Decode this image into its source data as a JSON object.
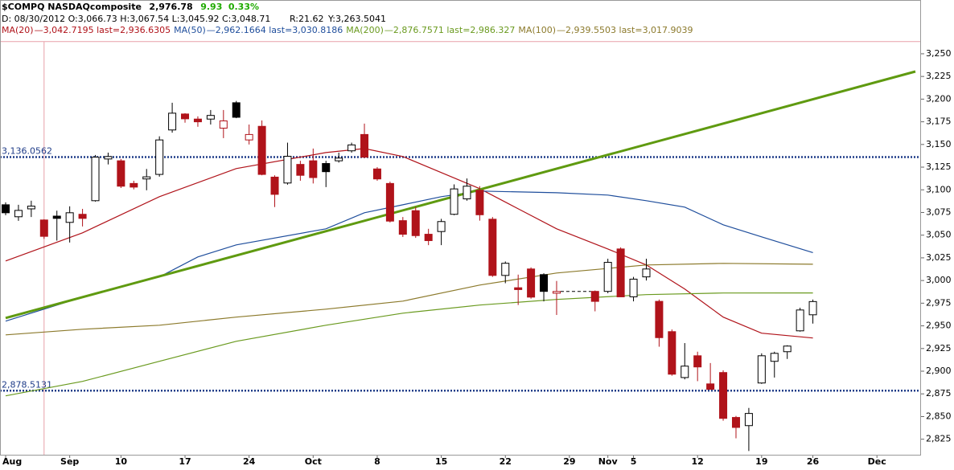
{
  "chart_data": {
    "type": "candlestick",
    "header": {
      "symbol": "$COMPQ NASDAQcomposite",
      "last": "2,976.78",
      "change": "9.93",
      "change_pct": "0.33%",
      "info": "D: 08/30/2012 O:3,066.73 H:3,067.54 L:3,045.92 C:3,048.71",
      "readout_r": "R:21.62",
      "readout_y": "Y:3,263.5041"
    },
    "up_color": "#000000",
    "down_color": "#b0131a",
    "change_color": "#1faa00",
    "xlim": [
      -0.44,
      71.44
    ],
    "xticks": [
      {
        "value": 0,
        "label": "Aug"
      },
      {
        "value": 5,
        "label": "Sep"
      },
      {
        "value": 9,
        "label": "10"
      },
      {
        "value": 14,
        "label": "17"
      },
      {
        "value": 19,
        "label": "24"
      },
      {
        "value": 24,
        "label": "Oct"
      },
      {
        "value": 29,
        "label": "8"
      },
      {
        "value": 34,
        "label": "15"
      },
      {
        "value": 39,
        "label": "22"
      },
      {
        "value": 44,
        "label": "29"
      },
      {
        "value": 47,
        "label": "Nov"
      },
      {
        "value": 49,
        "label": "5"
      },
      {
        "value": 54,
        "label": "12"
      },
      {
        "value": 59,
        "label": "19"
      },
      {
        "value": 63,
        "label": "26"
      },
      {
        "value": 68,
        "label": "Dec"
      }
    ],
    "ylim": [
      2807,
      3309.3
    ],
    "yticks": [
      {
        "value": 2825,
        "label": "2,825"
      },
      {
        "value": 2850,
        "label": "2,850"
      },
      {
        "value": 2875,
        "label": "2,875"
      },
      {
        "value": 2900,
        "label": "2,900"
      },
      {
        "value": 2925,
        "label": "2,925"
      },
      {
        "value": 2950,
        "label": "2,950"
      },
      {
        "value": 2975,
        "label": "2,975"
      },
      {
        "value": 3000,
        "label": "3,000"
      },
      {
        "value": 3025,
        "label": "3,025"
      },
      {
        "value": 3050,
        "label": "3,050"
      },
      {
        "value": 3075,
        "label": "3,075"
      },
      {
        "value": 3100,
        "label": "3,100"
      },
      {
        "value": 3125,
        "label": "3,125"
      },
      {
        "value": 3150,
        "label": "3,150"
      },
      {
        "value": 3175,
        "label": "3,175"
      },
      {
        "value": 3200,
        "label": "3,200"
      },
      {
        "value": 3225,
        "label": "3,225"
      },
      {
        "value": 3250,
        "label": "3,250"
      }
    ],
    "ohlc": {
      "x": [
        0,
        1,
        2,
        3,
        4,
        5,
        6,
        7,
        8,
        9,
        10,
        11,
        12,
        13,
        14,
        15,
        16,
        17,
        18,
        19,
        20,
        21,
        22,
        23,
        24,
        25,
        26,
        27,
        28,
        29,
        30,
        31,
        32,
        33,
        34,
        35,
        36,
        37,
        38,
        39,
        40,
        41,
        42,
        43,
        46,
        47,
        48,
        49,
        50,
        51,
        52,
        53,
        54,
        55,
        56,
        57,
        58,
        59,
        60,
        61,
        62,
        63
      ],
      "open": [
        3083.5,
        3070.3,
        3079,
        3066.73,
        3071,
        3064.1,
        3073,
        3088,
        3134,
        3132,
        3107,
        3112,
        3117,
        3166,
        3183.6,
        3178,
        3178,
        3168,
        3196,
        3155,
        3170,
        3114,
        3107.5,
        3128,
        3132,
        3129,
        3132,
        3143,
        3161,
        3123,
        3107,
        3066,
        3077,
        3051,
        3054,
        3073,
        3090,
        3099.5,
        3067.6,
        3005.6,
        2992,
        3012.7,
        3006.5,
        2986,
        2988,
        2988,
        3034.8,
        2982,
        3004,
        2977,
        2943.6,
        2893,
        2917,
        2886,
        2898.5,
        2849,
        2840,
        2887,
        2910.9,
        2921.5,
        2944.5,
        2962.2
      ],
      "high": [
        3086.2,
        3083.5,
        3088,
        3067.54,
        3077,
        3081.8,
        3079,
        3138.4,
        3141,
        3134,
        3110,
        3123,
        3159,
        3196,
        3184.5,
        3181,
        3188,
        3188,
        3198,
        3172,
        3176.5,
        3116,
        3152,
        3132,
        3145.5,
        3132,
        3141,
        3152,
        3173,
        3125,
        3109,
        3070,
        3081,
        3057,
        3068,
        3106,
        3112.5,
        3104,
        3070,
        3021,
        3006.5,
        3014.5,
        3008,
        2999.5,
        2989,
        3024,
        3036.6,
        3004,
        3024,
        2979,
        2946,
        2931,
        2921.5,
        2909,
        2901,
        2850.7,
        2859.5,
        2919.7,
        2921.5,
        2928.6,
        2970,
        2979
      ],
      "low": [
        3072,
        3065.8,
        3070,
        3045.92,
        3044,
        3041.9,
        3059.6,
        3087,
        3128,
        3102,
        3100.5,
        3099.5,
        3114.5,
        3163,
        3174,
        3169.5,
        3172,
        3157,
        3179,
        3150,
        3116,
        3081,
        3105.7,
        3110,
        3107,
        3103,
        3130,
        3141,
        3135,
        3110,
        3064,
        3048,
        3047,
        3039,
        3039,
        3072,
        3088,
        3066,
        3004,
        2997,
        2973,
        2980,
        2977,
        2962,
        2966,
        2986,
        2982,
        2977,
        3000,
        2927,
        2895,
        2891,
        2889,
        2880,
        2845.4,
        2826,
        2812,
        2886,
        2893,
        2913.5,
        2943.6,
        2952.5
      ],
      "close": [
        3074.7,
        3077.3,
        3082,
        3048.71,
        3068.5,
        3074.7,
        3068.5,
        3136,
        3136.7,
        3104,
        3103,
        3114.3,
        3155,
        3184.5,
        3178.3,
        3175,
        3182,
        3176,
        3180,
        3161,
        3117,
        3095,
        3137,
        3116,
        3113.5,
        3120,
        3135,
        3149.5,
        3136,
        3112,
        3065.5,
        3051,
        3049.5,
        3044,
        3065,
        3101,
        3104,
        3072.5,
        3005.6,
        3019,
        2990,
        2981.7,
        2988,
        2987.9,
        2977,
        3020,
        2982,
        3001.5,
        3012.7,
        2937,
        2896.7,
        2905.6,
        2904.7,
        2880,
        2848,
        2838,
        2853.4,
        2917,
        2919.7,
        2927.7,
        2967.5,
        2976.78
      ]
    },
    "series": [
      {
        "name": "MA(20)",
        "legend_text": "—3,042.7195 last=2,936.6305",
        "color": "#b0131a",
        "x": [
          0,
          6,
          12,
          18,
          25,
          28,
          31,
          34,
          37,
          40,
          43,
          47,
          50,
          53,
          56,
          59,
          63
        ],
        "values": [
          3021.6,
          3052.6,
          3092.4,
          3123.4,
          3141.1,
          3145.5,
          3136.7,
          3119.0,
          3101.3,
          3079.1,
          3057.0,
          3034.8,
          3017.1,
          2990.6,
          2959.6,
          2941.9,
          2936.6
        ]
      },
      {
        "name": "MA(50)",
        "legend_text": "—2,962.1664 last=3,030.8186",
        "color": "#1f4e9c",
        "x": [
          0,
          6,
          12,
          15,
          18,
          25,
          28,
          31,
          34,
          37,
          43,
          47,
          50,
          53,
          56,
          59,
          63
        ],
        "values": [
          2955.2,
          2981.7,
          3003.9,
          3026.0,
          3039.3,
          3057.0,
          3074.7,
          3083.5,
          3092.4,
          3098.6,
          3096.8,
          3094.2,
          3088.0,
          3080.9,
          3061.4,
          3048.1,
          3030.8
        ]
      },
      {
        "name": "MA(200)",
        "legend_text": "—2,876.7571 last=2,986.327",
        "color": "#6a9a1f",
        "x": [
          0,
          6,
          12,
          18,
          25,
          31,
          37,
          43,
          50,
          56,
          63
        ],
        "values": [
          2872.8,
          2888.8,
          2910.9,
          2933.0,
          2950.7,
          2964.0,
          2972.9,
          2979.1,
          2984.4,
          2986.2,
          2986.3
        ]
      },
      {
        "name": "MA(100)",
        "legend_text": "—2,939.5503 last=3,017.9039",
        "color": "#8c7a2c",
        "x": [
          0,
          6,
          12,
          18,
          25,
          31,
          37,
          43,
          50,
          56,
          63
        ],
        "values": [
          2940.1,
          2946.3,
          2950.7,
          2959.6,
          2968.4,
          2977.3,
          2995.0,
          3008.3,
          3017.1,
          3018.9,
          3017.9
        ]
      }
    ],
    "trendlines": [
      {
        "color": "#5f9a10",
        "x": [
          0,
          71
        ],
        "values": [
          2958.7,
          3230.5
        ]
      }
    ],
    "hlines": [
      {
        "value": 3136.0562,
        "label": "3,136.0562",
        "color": "#1f3c88"
      },
      {
        "value": 2878.5131,
        "label": "2,878.5131",
        "color": "#1f3c88"
      }
    ],
    "cursor": {
      "x": 3,
      "y": 3263.5041,
      "color": "#e8a0a8"
    }
  }
}
